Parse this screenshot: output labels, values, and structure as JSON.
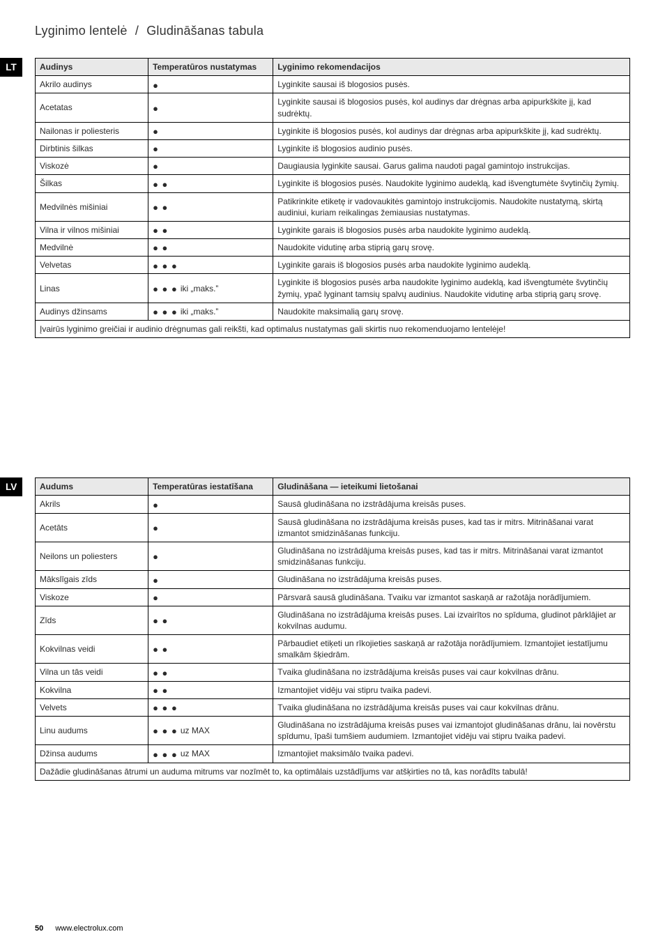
{
  "title_lt": "Lyginimo lentelė",
  "title_sep": "/",
  "title_lv": "Gludināšanas tabula",
  "lang_lt": "LT",
  "lang_lv": "LV",
  "table_lt": {
    "headers": [
      "Audinys",
      "Temperatūros nustatymas",
      "Lyginimo rekomendacijos"
    ],
    "rows": [
      {
        "a": "Akrilo audinys",
        "dots": 1,
        "suffix": "",
        "c": "Lyginkite sausai iš blogosios pusės."
      },
      {
        "a": "Acetatas",
        "dots": 1,
        "suffix": "",
        "c": "Lyginkite sausai iš blogosios pusės, kol audinys dar drėgnas arba apipurkškite jį, kad sudrėktų."
      },
      {
        "a": "Nailonas ir poliesteris",
        "dots": 1,
        "suffix": "",
        "c": "Lyginkite iš blogosios pusės, kol audinys dar drėgnas arba apipurkškite jį, kad sudrėktų."
      },
      {
        "a": "Dirbtinis šilkas",
        "dots": 1,
        "suffix": "",
        "c": "Lyginkite iš blogosios audinio pusės."
      },
      {
        "a": "Viskozė",
        "dots": 1,
        "suffix": "",
        "c": "Daugiausia lyginkite sausai. Garus galima naudoti pagal gamintojo instrukcijas."
      },
      {
        "a": "Šilkas",
        "dots": 2,
        "suffix": "",
        "c": "Lyginkite iš blogosios pusės. Naudokite lyginimo audeklą, kad išvengtumėte švytinčių žymių."
      },
      {
        "a": "Medvilnės mišiniai",
        "dots": 2,
        "suffix": "",
        "c": "Patikrinkite etiketę ir vadovaukitės gamintojo instrukcijomis. Naudokite nustatymą, skirtą audiniui, kuriam reikalingas žemiausias nustatymas."
      },
      {
        "a": "Vilna ir vilnos mišiniai",
        "dots": 2,
        "suffix": "",
        "c": "Lyginkite garais iš blogosios pusės arba naudokite lyginimo audeklą."
      },
      {
        "a": "Medvilnė",
        "dots": 2,
        "suffix": "",
        "c": "Naudokite vidutinę arba stiprią garų srovę."
      },
      {
        "a": "Velvetas",
        "dots": 3,
        "suffix": "",
        "c": "Lyginkite garais iš blogosios pusės arba naudokite lyginimo audeklą."
      },
      {
        "a": "Linas",
        "dots": 3,
        "suffix": "iki „maks.‟",
        "c": "Lyginkite iš blogosios pusės arba naudokite lyginimo audeklą, kad išvengtumėte švytinčių žymių, ypač lyginant tamsių spalvų audinius. Naudokite vidutinę arba stiprią garų srovę."
      },
      {
        "a": "Audinys džinsams",
        "dots": 3,
        "suffix": "iki „maks.‟",
        "c": "Naudokite maksimalią garų srovę."
      }
    ],
    "footnote": "Įvairūs lyginimo greičiai ir audinio drėgnumas gali reikšti, kad optimalus nustatymas gali skirtis nuo rekomenduojamo lentelėje!"
  },
  "table_lv": {
    "headers": [
      "Audums",
      "Temperatūras iestatīšana",
      "Gludināšana — ieteikumi lietošanai"
    ],
    "rows": [
      {
        "a": "Akrils",
        "dots": 1,
        "suffix": "",
        "c": "Sausā gludināšana no izstrādājuma kreisās puses."
      },
      {
        "a": "Acetāts",
        "dots": 1,
        "suffix": "",
        "c": "Sausā gludināšana no izstrādājuma kreisās puses, kad tas ir mitrs. Mitrināšanai varat izmantot smidzināšanas funkciju."
      },
      {
        "a": "Neilons un poliesters",
        "dots": 1,
        "suffix": "",
        "c": "Gludināšana no izstrādājuma kreisās puses, kad tas ir mitrs. Mitrināšanai varat izmantot smidzināšanas funkciju."
      },
      {
        "a": "Mākslīgais zīds",
        "dots": 1,
        "suffix": "",
        "c": "Gludināšana no izstrādājuma kreisās puses."
      },
      {
        "a": "Viskoze",
        "dots": 1,
        "suffix": "",
        "c": "Pārsvarā sausā gludināšana. Tvaiku var izmantot saskaņā ar ražotāja norādījumiem."
      },
      {
        "a": "Zīds",
        "dots": 2,
        "suffix": "",
        "c": "Gludināšana no izstrādājuma kreisās puses. Lai izvairītos no spīduma, gludinot pārklājiet ar kokvilnas audumu."
      },
      {
        "a": "Kokvilnas veidi",
        "dots": 2,
        "suffix": "",
        "c": "Pārbaudiet etiķeti un rīkojieties saskaņā ar ražotāja norādījumiem. Izmantojiet iestatījumu smalkām šķiedrām."
      },
      {
        "a": "Vilna un tās veidi",
        "dots": 2,
        "suffix": "",
        "c": "Tvaika gludināšana no izstrādājuma kreisās puses vai caur kokvilnas drānu."
      },
      {
        "a": "Kokvilna",
        "dots": 2,
        "suffix": "",
        "c": "Izmantojiet vidēju vai stipru tvaika padevi."
      },
      {
        "a": "Velvets",
        "dots": 3,
        "suffix": "",
        "c": "Tvaika gludināšana no izstrādājuma kreisās puses vai caur kokvilnas drānu."
      },
      {
        "a": "Linu audums",
        "dots": 3,
        "suffix": "uz MAX",
        "c": "Gludināšana no izstrādājuma kreisās puses vai izmantojot gludināšanas drānu, lai novērstu spīdumu, īpaši tumšiem audumiem. Izmantojiet vidēju vai stipru tvaika padevi."
      },
      {
        "a": "Džinsa audums",
        "dots": 3,
        "suffix": "uz MAX",
        "c": "Izmantojiet maksimālo tvaika padevi."
      }
    ],
    "footnote": "Dažādie gludināšanas ātrumi un auduma mitrums var nozīmēt to, ka optimālais uzstādījums var atšķirties no tā, kas norādīts tabulā!"
  },
  "page_number": "50",
  "site": "www.electrolux.com"
}
